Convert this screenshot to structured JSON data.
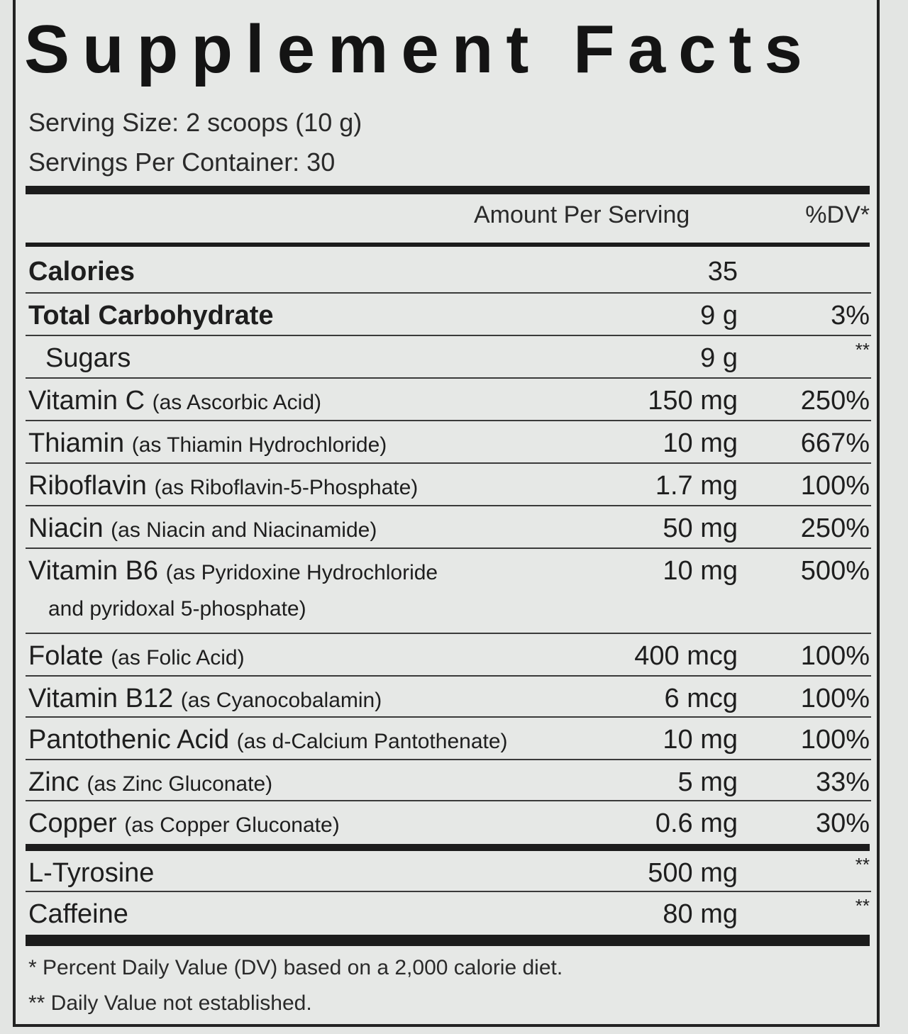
{
  "title": "Supplement Facts",
  "serving_size": "Serving Size: 2 scoops (10 g)",
  "servings_per_container": "Servings Per Container: 30",
  "header": {
    "amount": "Amount Per Serving",
    "dv": "%DV*"
  },
  "rows": [
    {
      "name": "Calories",
      "detail": "",
      "amount": "35",
      "dv": ""
    },
    {
      "name": "Total Carbohydrate",
      "detail": "",
      "amount": "9 g",
      "dv": "3%"
    },
    {
      "name": "Sugars",
      "detail": "",
      "amount": "9 g",
      "dv": "**"
    },
    {
      "name": "Vitamin C",
      "detail": "(as Ascorbic Acid)",
      "amount": "150 mg",
      "dv": "250%"
    },
    {
      "name": "Thiamin",
      "detail": "(as Thiamin Hydrochloride)",
      "amount": "10 mg",
      "dv": "667%"
    },
    {
      "name": "Riboflavin",
      "detail": "(as Riboflavin-5-Phosphate)",
      "amount": "1.7 mg",
      "dv": "100%"
    },
    {
      "name": "Niacin",
      "detail": "(as Niacin and Niacinamide)",
      "amount": "50 mg",
      "dv": "250%"
    },
    {
      "name": "Vitamin B6",
      "detail": "(as Pyridoxine Hydrochloride",
      "detail2": "and pyridoxal 5-phosphate)",
      "amount": "10 mg",
      "dv": "500%"
    },
    {
      "name": "Folate",
      "detail": "(as Folic Acid)",
      "amount": "400 mcg",
      "dv": "100%"
    },
    {
      "name": "Vitamin B12",
      "detail": "(as Cyanocobalamin)",
      "amount": "6 mcg",
      "dv": "100%"
    },
    {
      "name": "Pantothenic Acid",
      "detail": "(as d-Calcium Pantothenate)",
      "amount": "10 mg",
      "dv": "100%"
    },
    {
      "name": "Zinc",
      "detail": "(as Zinc Gluconate)",
      "amount": "5 mg",
      "dv": "33%"
    },
    {
      "name": "Copper",
      "detail": "(as Copper Gluconate)",
      "amount": "0.6 mg",
      "dv": "30%"
    },
    {
      "name": "L-Tyrosine",
      "detail": "",
      "amount": "500 mg",
      "dv": "**"
    },
    {
      "name": "Caffeine",
      "detail": "",
      "amount": "80 mg",
      "dv": "**"
    }
  ],
  "footnotes": [
    "* Percent Daily Value (DV) based on a 2,000 calorie diet.",
    "** Daily Value not established."
  ]
}
